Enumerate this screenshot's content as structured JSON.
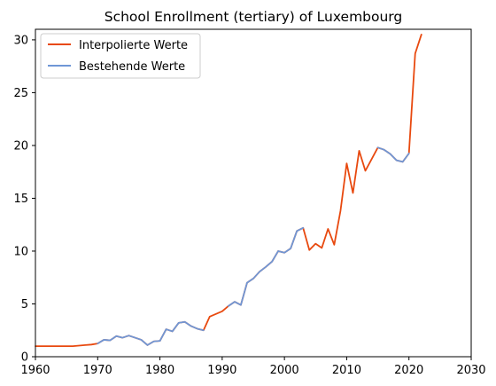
{
  "chart_data": {
    "type": "line",
    "title": "School Enrollment (tertiary) of Luxembourg",
    "xlabel": "",
    "ylabel": "",
    "xlim": [
      1960,
      2030
    ],
    "ylim": [
      0,
      31
    ],
    "xticks": [
      1960,
      1970,
      1980,
      1990,
      2000,
      2010,
      2020,
      2030
    ],
    "yticks": [
      0,
      5,
      10,
      15,
      20,
      25,
      30
    ],
    "grid": false,
    "legend": "top-left",
    "series": [
      {
        "name": "Interpolierte Werte",
        "color": "#e8490f",
        "x": [
          1960,
          1961,
          1962,
          1963,
          1964,
          1965,
          1966,
          1967,
          1968,
          1969,
          1970,
          1971,
          1972,
          1973,
          1974,
          1975,
          1976,
          1977,
          1978,
          1979,
          1980,
          1981,
          1982,
          1983,
          1984,
          1985,
          1986,
          1987,
          1988,
          1989,
          1990,
          1991,
          1992,
          1993,
          1994,
          1995,
          1996,
          1997,
          1998,
          1999,
          2000,
          2001,
          2002,
          2003,
          2004,
          2005,
          2006,
          2007,
          2008,
          2009,
          2010,
          2011,
          2012,
          2013,
          2014,
          2015,
          2016,
          2017,
          2018,
          2019,
          2020,
          2021,
          2022
        ],
        "y": [
          1.0,
          1.0,
          1.0,
          1.0,
          1.0,
          1.0,
          1.0,
          1.05,
          1.1,
          1.15,
          1.25,
          1.6,
          1.55,
          1.95,
          1.8,
          2.0,
          1.8,
          1.6,
          1.1,
          1.45,
          1.5,
          2.6,
          2.4,
          3.2,
          3.3,
          2.9,
          2.65,
          2.5,
          3.8,
          4.05,
          4.3,
          4.8,
          5.2,
          4.9,
          7.0,
          7.4,
          8.05,
          8.5,
          9.0,
          10.0,
          9.85,
          10.25,
          11.9,
          12.2,
          10.1,
          10.7,
          10.3,
          12.1,
          10.6,
          13.8,
          18.3,
          15.5,
          19.5,
          17.6,
          18.7,
          19.8,
          19.6,
          19.2,
          18.6,
          18.45,
          19.25,
          28.7,
          30.5
        ]
      },
      {
        "name": "Bestehende Werte",
        "color": "#6f97d6",
        "segments": [
          {
            "x": [
              1970,
              1971,
              1972,
              1973,
              1974,
              1975,
              1976,
              1977,
              1978,
              1979,
              1980,
              1981,
              1982,
              1983,
              1984,
              1985,
              1986,
              1987
            ],
            "y": [
              1.25,
              1.6,
              1.55,
              1.95,
              1.8,
              2.0,
              1.8,
              1.6,
              1.1,
              1.45,
              1.5,
              2.6,
              2.4,
              3.2,
              3.3,
              2.9,
              2.65,
              2.5
            ]
          },
          {
            "x": [
              1991,
              1992,
              1993,
              1994,
              1995,
              1996,
              1997,
              1998,
              1999,
              2000,
              2001,
              2002,
              2003
            ],
            "y": [
              4.8,
              5.2,
              4.9,
              7.0,
              7.4,
              8.05,
              8.5,
              9.0,
              10.0,
              9.85,
              10.25,
              11.9,
              12.2
            ]
          },
          {
            "x": [
              2015,
              2016,
              2017,
              2018,
              2019,
              2020
            ],
            "y": [
              19.8,
              19.6,
              19.2,
              18.6,
              18.45,
              19.25
            ]
          }
        ]
      }
    ]
  }
}
